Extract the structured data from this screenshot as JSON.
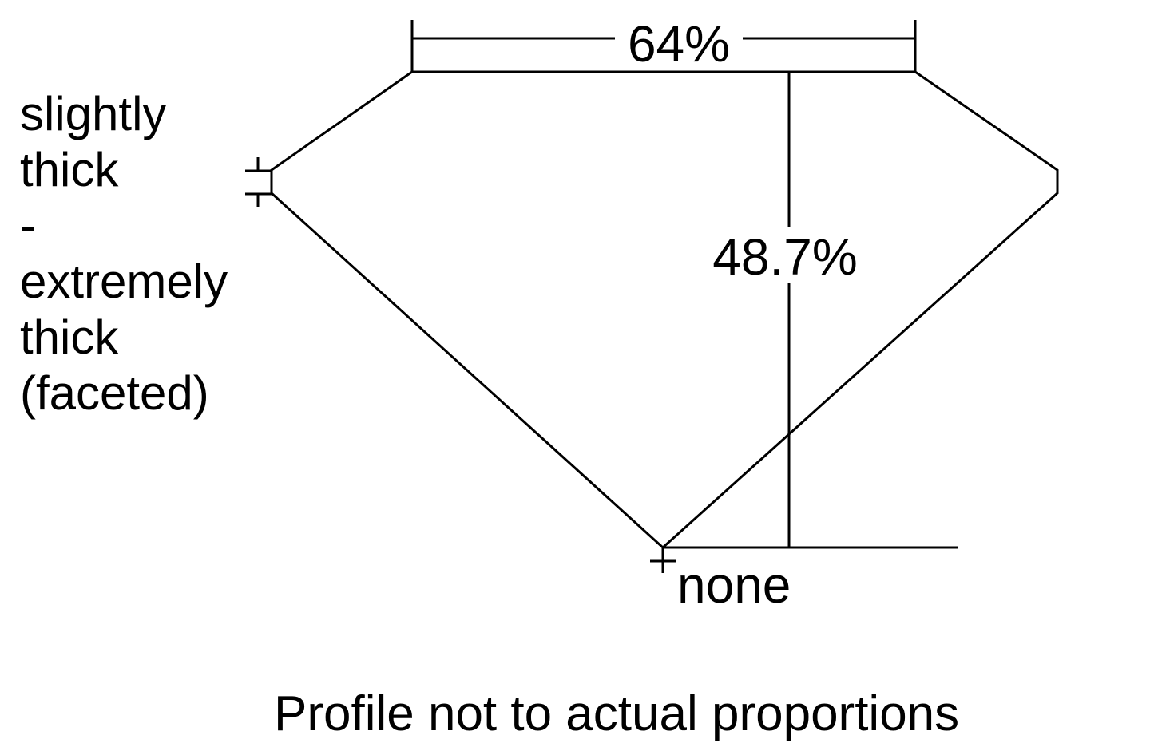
{
  "diagram": {
    "table_label": "64%",
    "depth_label": "48.7%",
    "girdle_label": [
      "slightly",
      "thick",
      "-",
      "extremely",
      "thick",
      "(faceted)"
    ],
    "culet_label": "none",
    "note": "Profile not to actual proportions"
  }
}
